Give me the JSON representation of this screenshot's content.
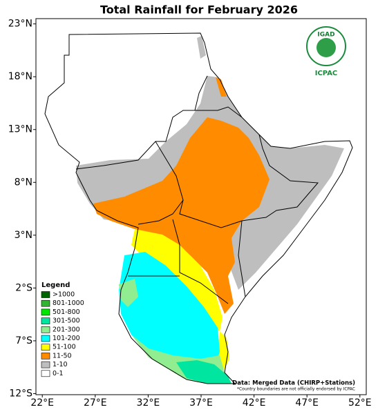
{
  "chart_data": {
    "type": "map",
    "title": "Total Rainfall for February 2026",
    "xlim": [
      21.4,
      52.6
    ],
    "ylim": [
      -12.1,
      23.5
    ],
    "xticks": [
      {
        "value": 22,
        "label": "22°E"
      },
      {
        "value": 27,
        "label": "27°E"
      },
      {
        "value": 32,
        "label": "32°E"
      },
      {
        "value": 37,
        "label": "37°E"
      },
      {
        "value": 42,
        "label": "42°E"
      },
      {
        "value": 47,
        "label": "47°E"
      },
      {
        "value": 52,
        "label": "52°E"
      }
    ],
    "yticks": [
      {
        "value": 23,
        "label": "23°N"
      },
      {
        "value": 18,
        "label": "18°N"
      },
      {
        "value": 13,
        "label": "13°N"
      },
      {
        "value": 8,
        "label": "8°N"
      },
      {
        "value": 3,
        "label": "3°N"
      },
      {
        "value": -2,
        "label": "2°S"
      },
      {
        "value": -7,
        "label": "7°S"
      },
      {
        "value": -12,
        "label": "12°S"
      }
    ],
    "legend": {
      "title": "Legend",
      "items": [
        {
          "name": ">1000",
          "color": "#006400"
        },
        {
          "name": "801-1000",
          "color": "#32b432"
        },
        {
          "name": "501-800",
          "color": "#00e600"
        },
        {
          "name": "301-500",
          "color": "#00e6a0"
        },
        {
          "name": "201-300",
          "color": "#90ee90"
        },
        {
          "name": "101-200",
          "color": "#00ffff"
        },
        {
          "name": "51-100",
          "color": "#ffff00"
        },
        {
          "name": "11-50",
          "color": "#ff8c00"
        },
        {
          "name": "1-10",
          "color": "#bebebe"
        },
        {
          "name": "0-1",
          "color": "#ffffff"
        }
      ]
    },
    "logo": {
      "name": "IGAD",
      "org": "ICPAC"
    },
    "source": "Data: Merged Data (CHIRP+Stations)",
    "disclaimer": "*Country boundaries are not officially endorsed by ICPAC"
  }
}
